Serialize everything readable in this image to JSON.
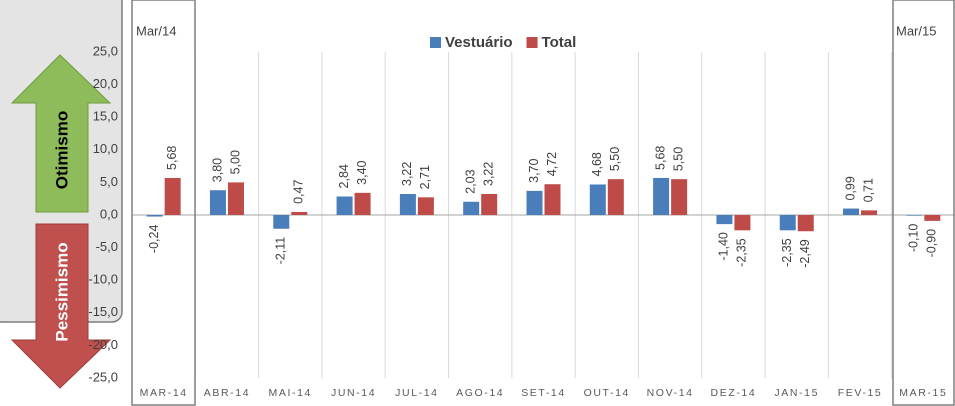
{
  "chart_data": {
    "type": "bar",
    "categories": [
      "MAR-14",
      "ABR-14",
      "MAI-14",
      "JUN-14",
      "JUL-14",
      "AGO-14",
      "SET-14",
      "OUT-14",
      "NOV-14",
      "DEZ-14",
      "JAN-15",
      "FEV-15",
      "MAR-15"
    ],
    "series": [
      {
        "name": "Vestuário",
        "color": "#4a7ebb",
        "values": [
          -0.24,
          3.8,
          -2.11,
          2.84,
          3.22,
          2.03,
          3.7,
          4.68,
          5.68,
          -1.4,
          -2.35,
          0.99,
          -0.1
        ],
        "value_labels": [
          "-0,24",
          "3,80",
          "-2,11",
          "2,84",
          "3,22",
          "2,03",
          "3,70",
          "4,68",
          "5,68",
          "-1,40",
          "-2,35",
          "0,99",
          "-0,10"
        ]
      },
      {
        "name": "Total",
        "color": "#be4b48",
        "values": [
          5.68,
          5.0,
          0.47,
          3.4,
          2.71,
          3.22,
          4.72,
          5.5,
          5.5,
          -2.35,
          -2.49,
          0.71,
          -0.9
        ],
        "value_labels": [
          "5,68",
          "5,00",
          "0,47",
          "3,40",
          "2,71",
          "3,22",
          "4,72",
          "5,50",
          "5,50",
          "-2,35",
          "-2,49",
          "0,71",
          "-0,90"
        ]
      }
    ],
    "ylim": [
      -25,
      25
    ],
    "yticks": [
      {
        "value": -25,
        "label": "-25,0"
      },
      {
        "value": -20,
        "label": "-20,0"
      },
      {
        "value": -15,
        "label": "-15,0"
      },
      {
        "value": -10,
        "label": "-10,0"
      },
      {
        "value": -5,
        "label": "-5,0"
      },
      {
        "value": 0,
        "label": "0,0"
      },
      {
        "value": 5,
        "label": "5,0"
      },
      {
        "value": 10,
        "label": "10,0"
      },
      {
        "value": 15,
        "label": "15,0"
      },
      {
        "value": 20,
        "label": "20,0"
      },
      {
        "value": 25,
        "label": "25,0"
      }
    ],
    "grid": false,
    "legend": "top",
    "annotations": {
      "optimism": "Otimismo",
      "pessimism": "Pessimismo",
      "start": "Mar/14",
      "end": "Mar/15"
    }
  }
}
